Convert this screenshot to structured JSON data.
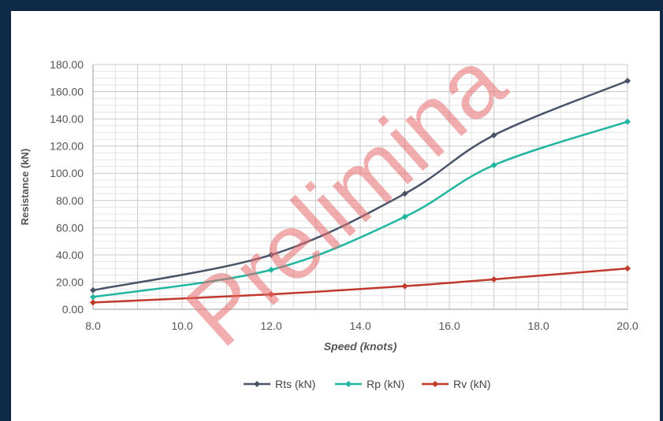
{
  "chart_data": {
    "type": "line",
    "title": "",
    "xlabel": "Speed (knots)",
    "ylabel": "Resistance (kN)",
    "xlim": [
      8,
      20
    ],
    "ylim": [
      0,
      180
    ],
    "x_ticks": [
      "8.0",
      "10.0",
      "12.0",
      "14.0",
      "16.0",
      "18.0",
      "20.0"
    ],
    "y_ticks": [
      "0.00",
      "20.00",
      "40.00",
      "60.00",
      "80.00",
      "100.00",
      "120.00",
      "140.00",
      "160.00",
      "180.00"
    ],
    "grid": true,
    "legend_position": "bottom",
    "x": [
      8,
      12,
      15,
      17,
      20
    ],
    "series": [
      {
        "name": "Rts (kN)",
        "color": "#4a5468",
        "values": [
          14,
          40,
          85,
          128,
          168
        ]
      },
      {
        "name": "Rp (kN)",
        "color": "#1fb5a0",
        "values": [
          9,
          29,
          68,
          106,
          138
        ]
      },
      {
        "name": "Rv (kN)",
        "color": "#c0392b",
        "values": [
          5,
          11,
          17,
          22,
          30
        ]
      }
    ],
    "watermark": "Prelimina"
  }
}
